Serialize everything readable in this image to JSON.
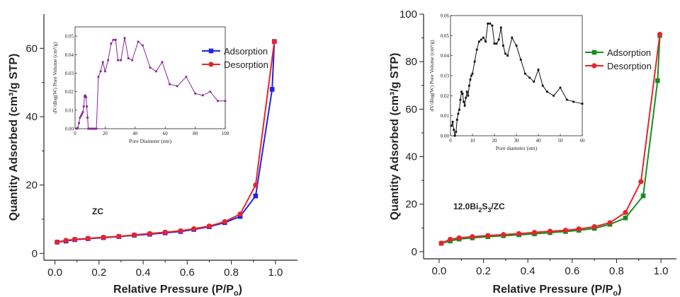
{
  "chart_data": [
    {
      "type": "line",
      "xlabel": "Relative Pressure (P/P",
      "xlabel_sub": "o",
      "xlabel_close": ")",
      "ylabel": "Quantity Adsorbed (cm³/g STP)",
      "xlim": [
        -0.05,
        1.1
      ],
      "ylim": [
        -2,
        70
      ],
      "xticks": [
        0.0,
        0.2,
        0.4,
        0.6,
        0.8,
        1.0
      ],
      "xtick_labels": [
        "0.0",
        "0.2",
        "0.4",
        "0.6",
        "0.8",
        "1.0"
      ],
      "yticks": [
        0,
        20,
        40,
        60
      ],
      "ytick_labels": [
        "0",
        "20",
        "40",
        "60"
      ],
      "annotation": {
        "parts": [
          "ZC"
        ]
      },
      "legend": "top-right",
      "series": [
        {
          "name": "Adsorption",
          "color": "#1f22e6",
          "marker": "square",
          "x": [
            0.01,
            0.05,
            0.09,
            0.15,
            0.22,
            0.29,
            0.36,
            0.43,
            0.5,
            0.57,
            0.63,
            0.7,
            0.77,
            0.84,
            0.91,
            0.985,
            0.995
          ],
          "y": [
            3.3,
            3.6,
            4.0,
            4.3,
            4.6,
            4.9,
            5.3,
            5.6,
            6.0,
            6.4,
            7.0,
            7.8,
            9.0,
            10.8,
            16.8,
            48.0,
            62.0
          ]
        },
        {
          "name": "Desorption",
          "color": "#e8242b",
          "marker": "circle",
          "x": [
            0.995,
            0.91,
            0.84,
            0.77,
            0.7,
            0.63,
            0.57,
            0.5,
            0.43,
            0.36,
            0.29,
            0.22,
            0.15,
            0.09,
            0.05,
            0.01
          ],
          "y": [
            62.0,
            20.0,
            11.5,
            9.3,
            8.0,
            7.2,
            6.6,
            6.2,
            5.8,
            5.4,
            5.0,
            4.7,
            4.4,
            4.1,
            3.8,
            3.3
          ]
        }
      ],
      "inset": {
        "ylabel": "dV/dlog(W) Pore Volume (cm³/g)",
        "xlabel": "Pore Diameter (nm)",
        "xlim": [
          0,
          100
        ],
        "ylim": [
          0,
          0.055
        ],
        "xticks": [
          0,
          20,
          40,
          60,
          80,
          100
        ],
        "xtick_labels": [
          "0",
          "20",
          "40",
          "60",
          "80",
          "100"
        ],
        "yticks": [
          0.0,
          0.01,
          0.02,
          0.03,
          0.04,
          0.05
        ],
        "ytick_labels": [
          "0.00",
          "0.01",
          "0.02",
          "0.03",
          "0.04",
          "0.05"
        ],
        "color": "#8a2896",
        "marker": "square",
        "x": [
          1,
          1.8,
          2.6,
          3.3,
          4,
          4.6,
          5.2,
          5.8,
          6.3,
          6.8,
          7.3,
          7.8,
          8.3,
          8.8,
          9.5,
          10.5,
          11.5,
          12.5,
          13.5,
          14.2,
          15.5,
          17,
          18.5,
          20,
          22,
          24,
          25.5,
          27,
          28.5,
          30.5,
          33,
          35.5,
          38,
          42,
          45,
          50,
          54,
          58,
          63,
          68,
          74,
          80,
          85,
          90,
          95,
          100
        ],
        "y": [
          0.0,
          0.0005,
          0.003,
          0.006,
          0.007,
          0.008,
          0.009,
          0.012,
          0.0175,
          0.018,
          0.017,
          0.012,
          0.006,
          0.0,
          0.0,
          0.0,
          0.0,
          0.0,
          0.0,
          0.0,
          0.028,
          0.031,
          0.036,
          0.031,
          0.037,
          0.046,
          0.048,
          0.048,
          0.037,
          0.037,
          0.049,
          0.038,
          0.037,
          0.047,
          0.045,
          0.033,
          0.031,
          0.036,
          0.024,
          0.023,
          0.028,
          0.019,
          0.018,
          0.02,
          0.015,
          0.015
        ]
      }
    },
    {
      "type": "line",
      "xlabel": "Relative Pressure (P/P",
      "xlabel_sub": "o",
      "xlabel_close": ")",
      "ylabel": "Quantity Adsorbed (cm³/g STP)",
      "xlim": [
        -0.07,
        1.07
      ],
      "ylim": [
        -3,
        100
      ],
      "xticks": [
        0.0,
        0.2,
        0.4,
        0.6,
        0.8,
        1.0
      ],
      "xtick_labels": [
        "0.0",
        "0.2",
        "0.4",
        "0.6",
        "0.8",
        "1.0"
      ],
      "yticks": [
        0,
        20,
        40,
        60,
        80,
        100
      ],
      "ytick_labels": [
        "0",
        "20",
        "40",
        "60",
        "80",
        "100"
      ],
      "annotation": {
        "parts": [
          "12.0Bi",
          "2",
          "S",
          "3",
          "/ZC"
        ]
      },
      "legend": "top-right",
      "series": [
        {
          "name": "Adsorption",
          "color": "#13901e",
          "marker": "square",
          "x": [
            0.01,
            0.05,
            0.09,
            0.15,
            0.22,
            0.29,
            0.36,
            0.43,
            0.5,
            0.57,
            0.63,
            0.7,
            0.77,
            0.84,
            0.92,
            0.985,
            0.995
          ],
          "y": [
            3.5,
            4.5,
            5.3,
            5.8,
            6.3,
            6.7,
            7.1,
            7.5,
            8.0,
            8.5,
            9.0,
            9.8,
            11.5,
            14.2,
            23.5,
            72.0,
            91.0
          ]
        },
        {
          "name": "Desorption",
          "color": "#e8242b",
          "marker": "circle",
          "x": [
            0.995,
            0.91,
            0.84,
            0.77,
            0.7,
            0.63,
            0.57,
            0.5,
            0.43,
            0.36,
            0.29,
            0.22,
            0.15,
            0.09,
            0.05,
            0.01
          ],
          "y": [
            91.5,
            29.5,
            16.5,
            12.2,
            10.5,
            9.6,
            9.0,
            8.6,
            8.1,
            7.6,
            7.2,
            6.8,
            6.3,
            5.8,
            5.2,
            3.6
          ]
        }
      ],
      "inset": {
        "ylabel": "dV/dlog(W) Pore Volume (cm³/g)",
        "xlabel": "Pore diameter (nm)",
        "xlim": [
          0,
          60
        ],
        "ylim": [
          0,
          0.06
        ],
        "xticks": [
          0,
          10,
          20,
          30,
          40,
          50,
          60
        ],
        "xtick_labels": [
          "0",
          "10",
          "20",
          "30",
          "40",
          "50",
          "60"
        ],
        "yticks": [
          0.0,
          0.01,
          0.02,
          0.03,
          0.04,
          0.05,
          0.06
        ],
        "ytick_labels": [
          "0.00",
          "0.01",
          "0.02",
          "0.03",
          "0.04",
          "0.05",
          "0.06"
        ],
        "color": "#111111",
        "marker": "square",
        "x": [
          0.5,
          1,
          1.5,
          2,
          2.5,
          3,
          3.5,
          4,
          4.5,
          5,
          5.5,
          6,
          6.5,
          7,
          7.5,
          8,
          8.5,
          9,
          9.5,
          10,
          11,
          12,
          13,
          14,
          15,
          16,
          17,
          18,
          19,
          20,
          21,
          22,
          23,
          24,
          25,
          26,
          28,
          30,
          32,
          34,
          36,
          38,
          40,
          42,
          44,
          47,
          50,
          53,
          56,
          60
        ],
        "y": [
          0.005,
          0.007,
          0.003,
          0.0,
          0.002,
          0.008,
          0.011,
          0.013,
          0.018,
          0.022,
          0.021,
          0.017,
          0.015,
          0.019,
          0.022,
          0.02,
          0.025,
          0.028,
          0.03,
          0.031,
          0.037,
          0.043,
          0.047,
          0.048,
          0.049,
          0.047,
          0.056,
          0.056,
          0.055,
          0.046,
          0.046,
          0.048,
          0.054,
          0.045,
          0.041,
          0.04,
          0.049,
          0.045,
          0.038,
          0.031,
          0.029,
          0.027,
          0.033,
          0.025,
          0.022,
          0.02,
          0.024,
          0.018,
          0.017,
          0.016
        ]
      }
    }
  ]
}
